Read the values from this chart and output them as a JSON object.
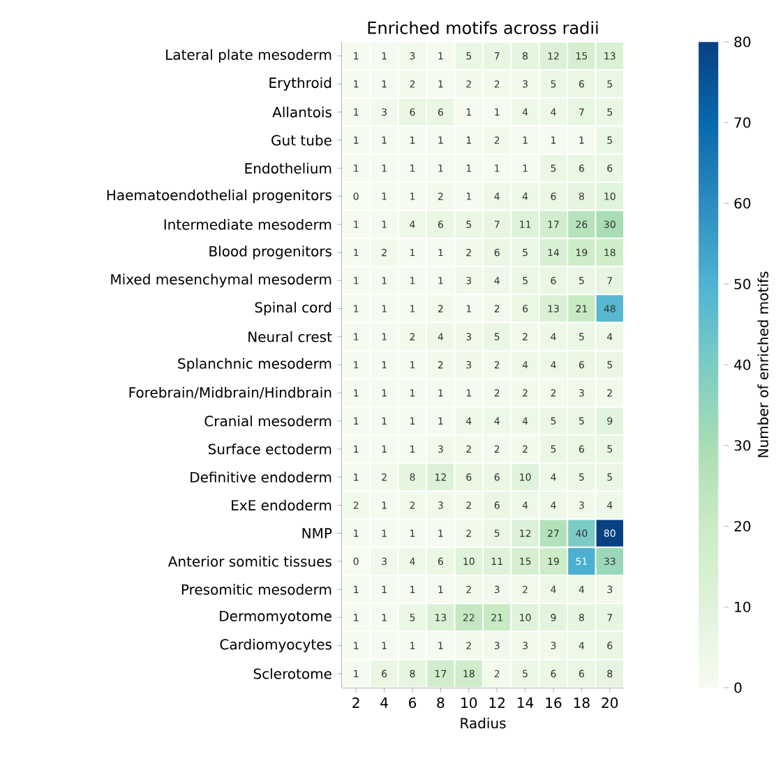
{
  "chart_data": {
    "type": "heatmap",
    "title": "Enriched motifs across radii",
    "xlabel": "Radius",
    "clabel": "Number of enriched motifs",
    "categories": [
      "2",
      "4",
      "6",
      "8",
      "10",
      "12",
      "14",
      "16",
      "18",
      "20"
    ],
    "y_categories": [
      "Lateral plate mesoderm",
      "Erythroid",
      "Allantois",
      "Gut tube",
      "Endothelium",
      "Haematoendothelial progenitors",
      "Intermediate mesoderm",
      "Blood progenitors",
      "Mixed mesenchymal mesoderm",
      "Spinal cord",
      "Neural crest",
      "Splanchnic mesoderm",
      "Forebrain/Midbrain/Hindbrain",
      "Cranial mesoderm",
      "Surface ectoderm",
      "Definitive endoderm",
      "ExE endoderm",
      "NMP",
      "Anterior somitic tissues",
      "Presomitic mesoderm",
      "Dermomyotome",
      "Cardiomyocytes",
      "Sclerotome"
    ],
    "cells": [
      [
        1,
        1,
        3,
        1,
        5,
        7,
        8,
        12,
        15,
        13
      ],
      [
        1,
        1,
        2,
        1,
        2,
        2,
        3,
        5,
        6,
        5
      ],
      [
        1,
        3,
        6,
        6,
        1,
        1,
        4,
        4,
        7,
        5
      ],
      [
        1,
        1,
        1,
        1,
        1,
        2,
        1,
        1,
        1,
        5
      ],
      [
        1,
        1,
        1,
        1,
        1,
        1,
        1,
        5,
        6,
        6
      ],
      [
        0,
        1,
        1,
        2,
        1,
        4,
        4,
        6,
        8,
        10
      ],
      [
        1,
        1,
        4,
        6,
        5,
        7,
        11,
        17,
        26,
        30
      ],
      [
        1,
        2,
        1,
        1,
        2,
        6,
        5,
        14,
        19,
        18
      ],
      [
        1,
        1,
        1,
        1,
        3,
        4,
        5,
        6,
        5,
        7
      ],
      [
        1,
        1,
        1,
        2,
        1,
        2,
        6,
        13,
        21,
        48
      ],
      [
        1,
        1,
        2,
        4,
        3,
        5,
        2,
        4,
        5,
        4
      ],
      [
        1,
        1,
        1,
        2,
        3,
        2,
        4,
        4,
        6,
        5
      ],
      [
        1,
        1,
        1,
        1,
        1,
        2,
        2,
        2,
        3,
        2
      ],
      [
        1,
        1,
        1,
        1,
        4,
        4,
        4,
        5,
        5,
        9
      ],
      [
        1,
        1,
        1,
        3,
        2,
        2,
        2,
        5,
        6,
        5
      ],
      [
        1,
        2,
        8,
        12,
        6,
        6,
        10,
        4,
        5,
        5
      ],
      [
        2,
        1,
        2,
        3,
        2,
        6,
        4,
        4,
        3,
        4
      ],
      [
        1,
        1,
        1,
        1,
        2,
        5,
        12,
        27,
        40,
        80
      ],
      [
        0,
        3,
        4,
        6,
        10,
        11,
        15,
        19,
        51,
        33
      ],
      [
        1,
        1,
        1,
        1,
        2,
        3,
        2,
        4,
        4,
        3
      ],
      [
        1,
        1,
        5,
        13,
        22,
        21,
        10,
        9,
        8,
        7
      ],
      [
        1,
        1,
        1,
        1,
        2,
        3,
        3,
        3,
        4,
        6
      ],
      [
        1,
        6,
        8,
        17,
        18,
        2,
        5,
        6,
        6,
        8
      ]
    ],
    "clim": [
      0,
      80
    ],
    "cticks": [
      0,
      10,
      20,
      30,
      40,
      50,
      60,
      70,
      80
    ],
    "data_labels": true
  }
}
